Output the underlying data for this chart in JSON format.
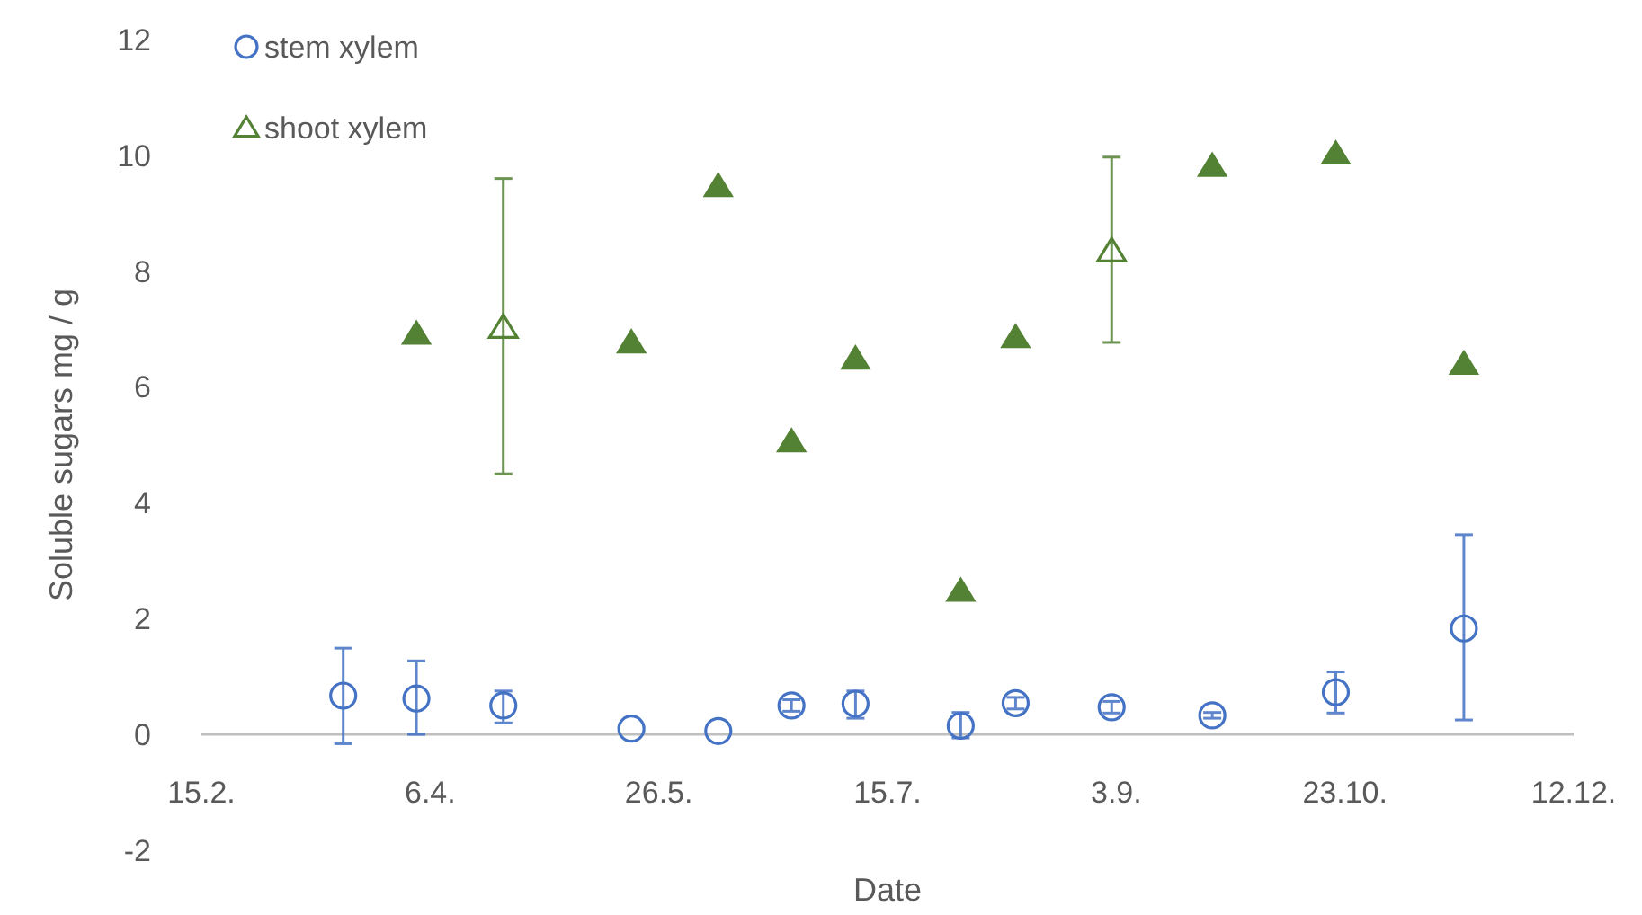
{
  "chart_data": {
    "type": "scatter",
    "xlabel": "Date",
    "ylabel": "Soluble sugars mg / g",
    "xlim": [
      "--02-15",
      "--12-12"
    ],
    "xticks": [
      {
        "value": "--02-15",
        "label": "15.2."
      },
      {
        "value": "--04-06",
        "label": "6.4."
      },
      {
        "value": "--05-26",
        "label": "26.5."
      },
      {
        "value": "--07-15",
        "label": "15.7."
      },
      {
        "value": "--09-03",
        "label": "3.9."
      },
      {
        "value": "--10-23",
        "label": "23.10."
      },
      {
        "value": "--12-12",
        "label": "12.12."
      }
    ],
    "ylim": [
      -2,
      12
    ],
    "yticks": [
      -2,
      0,
      2,
      4,
      6,
      8,
      10,
      12
    ],
    "grid": false,
    "legend": "top left",
    "series": [
      {
        "name": "stem xylem",
        "color": "#4472c4",
        "marker": "circle",
        "x": [
          "--03-18",
          "--04-03",
          "--04-22",
          "--05-20",
          "--06-08",
          "--06-24",
          "--07-08",
          "--07-31",
          "--08-12",
          "--09-02",
          "--09-24",
          "--10-21",
          "--11-18"
        ],
        "values": [
          0.67,
          0.62,
          0.5,
          0.1,
          0.06,
          0.5,
          0.53,
          0.15,
          0.54,
          0.47,
          0.33,
          0.73,
          1.83
        ],
        "errors": [
          [
            -0.16,
            1.49
          ],
          [
            0,
            1.27
          ],
          [
            0.2,
            0.75
          ],
          null,
          null,
          [
            0.4,
            0.6
          ],
          [
            0.28,
            0.75
          ],
          [
            -0.06,
            0.38
          ],
          [
            0.44,
            0.64
          ],
          [
            0.37,
            0.57
          ],
          [
            0.28,
            0.38
          ],
          [
            0.37,
            1.08
          ],
          [
            0.25,
            3.45
          ]
        ]
      },
      {
        "name": "shoot xylem",
        "color": "#548235",
        "marker": "triangle",
        "x": [
          "--04-22",
          "--09-02"
        ],
        "values": [
          7.03,
          8.35
        ],
        "errors": [
          [
            4.5,
            9.6
          ],
          [
            6.77,
            9.97
          ]
        ]
      },
      {
        "color": "#548235",
        "marker": "triangle",
        "x": [
          "--04-03",
          "--05-20",
          "--06-08",
          "--06-24",
          "--07-08",
          "--07-31",
          "--08-12",
          "--09-24",
          "--10-21",
          "--11-18"
        ],
        "values": [
          6.92,
          6.77,
          9.47,
          5.06,
          6.49,
          2.48,
          6.86,
          9.82,
          10.03,
          6.4
        ]
      }
    ]
  }
}
